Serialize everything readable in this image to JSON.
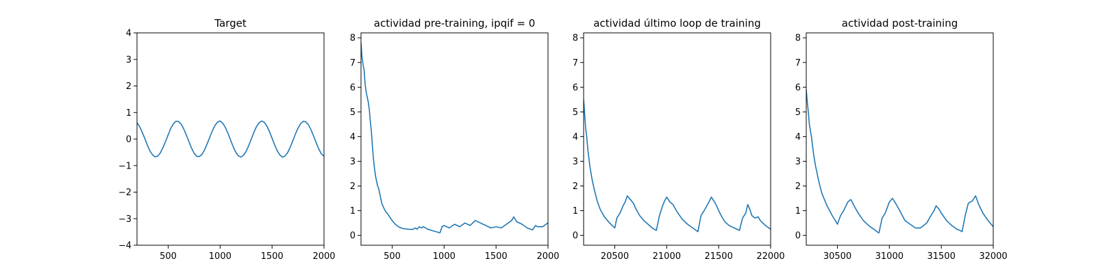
{
  "chart_data": [
    {
      "type": "line",
      "title": "Target",
      "xlim": [
        200,
        2000
      ],
      "ylim": [
        -4,
        4
      ],
      "xticks": [
        500,
        1000,
        1500,
        2000
      ],
      "yticks": [
        -4,
        -3,
        -2,
        -1,
        0,
        1,
        2,
        3,
        4
      ],
      "xtick_labels": [
        "500",
        "1000",
        "1500",
        "2000"
      ],
      "ytick_labels": [
        "−4",
        "−3",
        "−2",
        "−1",
        "0",
        "1",
        "2",
        "3",
        "4"
      ],
      "line_color": "#1f77b4",
      "series": [
        {
          "x": [
            200,
            225,
            250,
            275,
            300,
            325,
            350,
            375,
            400,
            425,
            450,
            475,
            500,
            525,
            550,
            575,
            600,
            625,
            650,
            675,
            700,
            725,
            750,
            775,
            800,
            825,
            850,
            875,
            900,
            925,
            950,
            975,
            1000,
            1025,
            1050,
            1075,
            1100,
            1125,
            1150,
            1175,
            1200,
            1225,
            1250,
            1275,
            1300,
            1325,
            1350,
            1375,
            1400,
            1425,
            1450,
            1475,
            1500,
            1525,
            1550,
            1575,
            1600,
            1625,
            1650,
            1675,
            1700,
            1725,
            1750,
            1775,
            1800,
            1825,
            1850,
            1875,
            1900,
            1925,
            1950,
            1975,
            2000
          ],
          "y": [
            0.62,
            0.47,
            0.26,
            0.02,
            -0.23,
            -0.45,
            -0.6,
            -0.67,
            -0.64,
            -0.52,
            -0.32,
            -0.09,
            0.16,
            0.4,
            0.57,
            0.67,
            0.66,
            0.56,
            0.38,
            0.15,
            -0.1,
            -0.34,
            -0.54,
            -0.65,
            -0.66,
            -0.58,
            -0.41,
            -0.18,
            0.06,
            0.31,
            0.51,
            0.64,
            0.68,
            0.6,
            0.44,
            0.22,
            -0.03,
            -0.28,
            -0.49,
            -0.63,
            -0.68,
            -0.61,
            -0.47,
            -0.25,
            0.0,
            0.25,
            0.47,
            0.61,
            0.68,
            0.63,
            0.49,
            0.28,
            0.03,
            -0.22,
            -0.44,
            -0.6,
            -0.68,
            -0.64,
            -0.51,
            -0.31,
            -0.06,
            0.19,
            0.41,
            0.58,
            0.67,
            0.65,
            0.54,
            0.35,
            0.11,
            -0.14,
            -0.38,
            -0.56,
            -0.64
          ]
        }
      ]
    },
    {
      "type": "line",
      "title": "actividad pre-training, ipqif = 0",
      "xlim": [
        200,
        2000
      ],
      "ylim": [
        -0.4,
        8.2
      ],
      "xticks": [
        500,
        1000,
        1500,
        2000
      ],
      "yticks": [
        0,
        1,
        2,
        3,
        4,
        5,
        6,
        7,
        8
      ],
      "xtick_labels": [
        "500",
        "1000",
        "1500",
        "2000"
      ],
      "ytick_labels": [
        "0",
        "1",
        "2",
        "3",
        "4",
        "5",
        "6",
        "7",
        "8"
      ],
      "line_color": "#1f77b4",
      "series": [
        {
          "x": [
            200,
            210,
            220,
            230,
            240,
            250,
            260,
            270,
            280,
            290,
            300,
            310,
            320,
            330,
            340,
            350,
            360,
            370,
            380,
            390,
            400,
            420,
            440,
            460,
            480,
            500,
            530,
            560,
            600,
            650,
            700,
            720,
            740,
            760,
            780,
            800,
            840,
            880,
            920,
            960,
            980,
            1000,
            1050,
            1100,
            1150,
            1200,
            1250,
            1300,
            1350,
            1400,
            1450,
            1500,
            1550,
            1600,
            1650,
            1670,
            1700,
            1750,
            1800,
            1850,
            1880,
            1900,
            1950,
            1980,
            2000
          ],
          "y": [
            7.8,
            7.2,
            6.9,
            6.7,
            6.1,
            5.8,
            5.6,
            5.4,
            5.1,
            4.6,
            4.2,
            3.6,
            3.1,
            2.7,
            2.4,
            2.2,
            2.0,
            1.9,
            1.7,
            1.5,
            1.3,
            1.1,
            0.95,
            0.85,
            0.72,
            0.6,
            0.45,
            0.35,
            0.28,
            0.25,
            0.24,
            0.3,
            0.25,
            0.35,
            0.3,
            0.35,
            0.25,
            0.2,
            0.15,
            0.1,
            0.35,
            0.4,
            0.3,
            0.45,
            0.35,
            0.5,
            0.4,
            0.6,
            0.5,
            0.4,
            0.3,
            0.35,
            0.3,
            0.45,
            0.6,
            0.75,
            0.55,
            0.45,
            0.3,
            0.22,
            0.4,
            0.35,
            0.35,
            0.45,
            0.5
          ]
        }
      ]
    },
    {
      "type": "line",
      "title": "actividad último loop de training",
      "xlim": [
        20200,
        22000
      ],
      "ylim": [
        -0.4,
        8.2
      ],
      "xticks": [
        20500,
        21000,
        21500,
        22000
      ],
      "yticks": [
        0,
        1,
        2,
        3,
        4,
        5,
        6,
        7,
        8
      ],
      "xtick_labels": [
        "20500",
        "21000",
        "21500",
        "22000"
      ],
      "ytick_labels": [
        "0",
        "1",
        "2",
        "3",
        "4",
        "5",
        "6",
        "7",
        "8"
      ],
      "line_color": "#1f77b4",
      "series": [
        {
          "x": [
            20200,
            20210,
            20220,
            20230,
            20240,
            20260,
            20280,
            20300,
            20330,
            20360,
            20400,
            20450,
            20500,
            20520,
            20550,
            20580,
            20600,
            20620,
            20650,
            20680,
            20700,
            20740,
            20780,
            20820,
            20860,
            20900,
            20930,
            20960,
            20980,
            21000,
            21030,
            21060,
            21100,
            21150,
            21200,
            21250,
            21300,
            21330,
            21360,
            21400,
            21430,
            21460,
            21480,
            21500,
            21530,
            21560,
            21600,
            21650,
            21700,
            21730,
            21760,
            21780,
            21800,
            21820,
            21850,
            21880,
            21900,
            21950,
            22000
          ],
          "y": [
            5.5,
            4.9,
            4.3,
            4.0,
            3.5,
            2.8,
            2.3,
            1.9,
            1.4,
            1.05,
            0.75,
            0.5,
            0.3,
            0.7,
            0.9,
            1.2,
            1.35,
            1.6,
            1.45,
            1.3,
            1.1,
            0.8,
            0.6,
            0.45,
            0.3,
            0.2,
            0.8,
            1.2,
            1.4,
            1.55,
            1.35,
            1.25,
            0.95,
            0.65,
            0.45,
            0.3,
            0.15,
            0.8,
            1.0,
            1.3,
            1.55,
            1.35,
            1.2,
            1.0,
            0.75,
            0.55,
            0.4,
            0.3,
            0.2,
            0.7,
            0.9,
            1.25,
            1.05,
            0.8,
            0.7,
            0.75,
            0.6,
            0.4,
            0.25
          ]
        }
      ]
    },
    {
      "type": "line",
      "title": "actividad post-training",
      "xlim": [
        30200,
        32000
      ],
      "ylim": [
        -0.4,
        8.2
      ],
      "xticks": [
        30500,
        31000,
        31500,
        32000
      ],
      "yticks": [
        0,
        1,
        2,
        3,
        4,
        5,
        6,
        7,
        8
      ],
      "xtick_labels": [
        "30500",
        "31000",
        "31500",
        "32000"
      ],
      "ytick_labels": [
        "0",
        "1",
        "2",
        "3",
        "4",
        "5",
        "6",
        "7",
        "8"
      ],
      "line_color": "#1f77b4",
      "series": [
        {
          "x": [
            30200,
            30210,
            30220,
            30230,
            30250,
            30270,
            30290,
            30320,
            30350,
            30400,
            30450,
            30480,
            30500,
            30530,
            30560,
            30600,
            30630,
            30660,
            30700,
            30750,
            30800,
            30850,
            30880,
            30900,
            30930,
            30960,
            31000,
            31030,
            31060,
            31100,
            31150,
            31200,
            31250,
            31300,
            31330,
            31360,
            31400,
            31430,
            31450,
            31480,
            31500,
            31550,
            31600,
            31650,
            31680,
            31700,
            31730,
            31760,
            31800,
            31830,
            31860,
            31900,
            31950,
            32000
          ],
          "y": [
            5.9,
            5.4,
            5.0,
            4.5,
            4.0,
            3.3,
            2.8,
            2.2,
            1.7,
            1.2,
            0.8,
            0.6,
            0.45,
            0.8,
            1.0,
            1.35,
            1.45,
            1.2,
            0.9,
            0.6,
            0.4,
            0.25,
            0.15,
            0.1,
            0.7,
            0.9,
            1.35,
            1.5,
            1.3,
            1.0,
            0.6,
            0.45,
            0.3,
            0.3,
            0.4,
            0.5,
            0.8,
            1.0,
            1.2,
            1.05,
            0.9,
            0.6,
            0.4,
            0.25,
            0.2,
            0.15,
            0.8,
            1.3,
            1.4,
            1.6,
            1.25,
            0.9,
            0.6,
            0.35
          ]
        }
      ]
    }
  ]
}
